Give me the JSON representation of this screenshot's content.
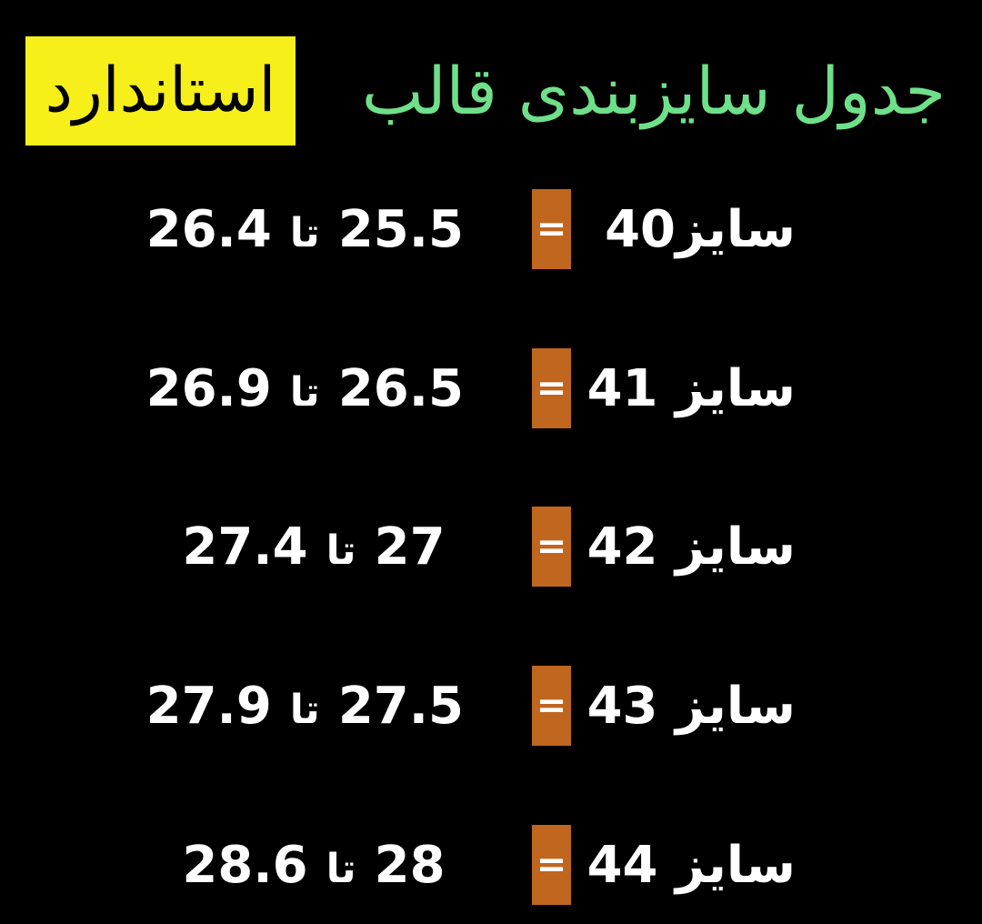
{
  "header": {
    "title": "جدول سایزبندی قالب",
    "highlight": "استاندارد"
  },
  "rows": [
    {
      "size": "سایز40",
      "equals": "=",
      "from": "25.5",
      "joiner": "تا",
      "to": "26.4"
    },
    {
      "size": "سایز 41",
      "equals": "=",
      "from": "26.5",
      "joiner": "تا",
      "to": "26.9"
    },
    {
      "size": "سایز 42",
      "equals": "=",
      "from": "27",
      "joiner": "تا",
      "to": "27.4"
    },
    {
      "size": "سایز 43",
      "equals": "=",
      "from": "27.5",
      "joiner": "تا",
      "to": "27.9"
    },
    {
      "size": "سایز 44",
      "equals": "=",
      "from": "28",
      "joiner": "تا",
      "to": "28.6"
    }
  ]
}
